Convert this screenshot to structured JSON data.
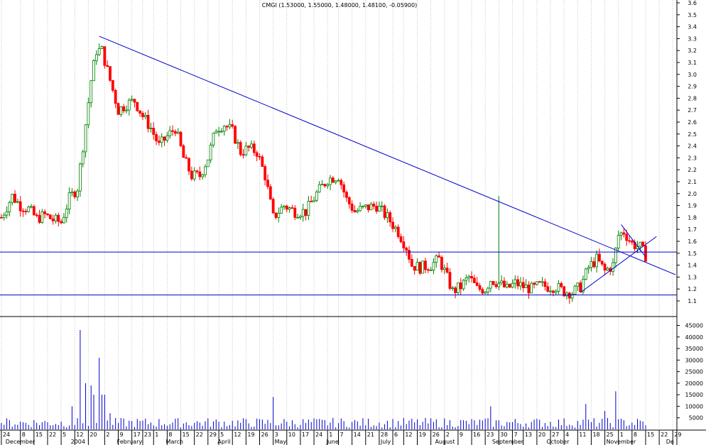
{
  "chart_data": {
    "type": "candlestick",
    "title": "CMGI (1.53000, 1.55000, 1.48000, 1.48100, -0.05900)",
    "colors": {
      "up": "#008000",
      "down": "#ff0000",
      "trend": "#0000cc",
      "volume": "#0000cc",
      "grid": "#c0c0c0",
      "axis": "#000000"
    },
    "price_axis": {
      "ylim": [
        1.1,
        3.6
      ],
      "ticks": [
        "3.6",
        "3.5",
        "3.4",
        "3.3",
        "3.2",
        "3.1",
        "3.0",
        "2.9",
        "2.8",
        "2.7",
        "2.6",
        "2.5",
        "2.4",
        "2.3",
        "2.2",
        "2.1",
        "2.0",
        "1.9",
        "1.8",
        "1.7",
        "1.6",
        "1.5",
        "1.4",
        "1.3",
        "1.2",
        "1.1"
      ],
      "tick_values": [
        3.6,
        3.5,
        3.4,
        3.3,
        3.2,
        3.1,
        3.0,
        2.9,
        2.8,
        2.7,
        2.6,
        2.5,
        2.4,
        2.3,
        2.2,
        2.1,
        2.0,
        1.9,
        1.8,
        1.7,
        1.6,
        1.5,
        1.4,
        1.3,
        1.2,
        1.1
      ]
    },
    "volume_axis": {
      "ylim": [
        0,
        47000
      ],
      "ticks": [
        "45000",
        "40000",
        "35000",
        "30000",
        "25000",
        "20000",
        "15000",
        "10000",
        "5000"
      ],
      "tick_values": [
        45000,
        40000,
        35000,
        30000,
        25000,
        20000,
        15000,
        10000,
        5000
      ]
    },
    "date_ticks": [
      "24",
      "8",
      "15",
      "22",
      "5",
      "12",
      "20",
      "2",
      "9",
      "17",
      "23",
      "1",
      "8",
      "15",
      "22",
      "29",
      "5",
      "12",
      "19",
      "26",
      "3",
      "10",
      "17",
      "24",
      "1",
      "7",
      "14",
      "21",
      "28",
      "6",
      "12",
      "19",
      "26",
      "2",
      "9",
      "16",
      "23",
      "30",
      "7",
      "13",
      "20",
      "27",
      "4",
      "11",
      "18",
      "25",
      "1",
      "8",
      "15",
      "22",
      "29"
    ],
    "date_tick_index": [
      0,
      7,
      12,
      17,
      22,
      27,
      32,
      38,
      43,
      48,
      52,
      56,
      61,
      66,
      71,
      76,
      80,
      85,
      90,
      95,
      100,
      105,
      110,
      115,
      120,
      124,
      129,
      134,
      139,
      144,
      148,
      153,
      158,
      163,
      168,
      173,
      178,
      183,
      188,
      192,
      197,
      202,
      207,
      212,
      217,
      222,
      227,
      232,
      237,
      242,
      247
    ],
    "month_labels": [
      "December",
      "2004",
      "February",
      "March",
      "April",
      "May",
      "June",
      "July",
      "August",
      "September",
      "October",
      "November",
      "De"
    ],
    "month_label_index": [
      1,
      25,
      42,
      60,
      79,
      100,
      119,
      139,
      159,
      180,
      200,
      222,
      244
    ],
    "hlines": [
      1.51,
      1.15
    ],
    "trendlines": [
      {
        "x1": 36,
        "y1": 3.32,
        "x2": 248,
        "y2": 1.32
      },
      {
        "x1": 213,
        "y1": 1.17,
        "x2": 241,
        "y2": 1.64
      },
      {
        "x1": 228,
        "y1": 1.74,
        "x2": 237,
        "y2": 1.47
      }
    ],
    "prices": [
      [
        0,
        1.8
      ],
      [
        4,
        1.98
      ],
      [
        7,
        1.9
      ],
      [
        10,
        1.87
      ],
      [
        13,
        1.79
      ],
      [
        16,
        1.82
      ],
      [
        19,
        1.78
      ],
      [
        22,
        1.76
      ],
      [
        25,
        1.96
      ],
      [
        28,
        2.05
      ],
      [
        30,
        2.4
      ],
      [
        33,
        2.95
      ],
      [
        35,
        3.2
      ],
      [
        37,
        3.2
      ],
      [
        40,
        2.95
      ],
      [
        43,
        2.7
      ],
      [
        46,
        2.75
      ],
      [
        49,
        2.78
      ],
      [
        52,
        2.65
      ],
      [
        55,
        2.55
      ],
      [
        58,
        2.4
      ],
      [
        61,
        2.48
      ],
      [
        64,
        2.55
      ],
      [
        67,
        2.3
      ],
      [
        70,
        2.15
      ],
      [
        73,
        2.15
      ],
      [
        76,
        2.3
      ],
      [
        79,
        2.55
      ],
      [
        82,
        2.58
      ],
      [
        85,
        2.52
      ],
      [
        88,
        2.35
      ],
      [
        91,
        2.38
      ],
      [
        94,
        2.35
      ],
      [
        97,
        2.15
      ],
      [
        100,
        1.8
      ],
      [
        104,
        1.9
      ],
      [
        108,
        1.85
      ],
      [
        112,
        1.85
      ],
      [
        116,
        2.0
      ],
      [
        120,
        2.12
      ],
      [
        124,
        2.15
      ],
      [
        127,
        1.95
      ],
      [
        130,
        1.85
      ],
      [
        134,
        1.88
      ],
      [
        138,
        1.9
      ],
      [
        142,
        1.8
      ],
      [
        146,
        1.68
      ],
      [
        149,
        1.55
      ],
      [
        151,
        1.4
      ],
      [
        154,
        1.38
      ],
      [
        158,
        1.4
      ],
      [
        161,
        1.45
      ],
      [
        163,
        1.35
      ],
      [
        166,
        1.18
      ],
      [
        169,
        1.22
      ],
      [
        172,
        1.3
      ],
      [
        175,
        1.2
      ],
      [
        178,
        1.2
      ],
      [
        180,
        1.28
      ],
      [
        183,
        1.25
      ],
      [
        186,
        1.2
      ],
      [
        189,
        1.25
      ],
      [
        192,
        1.22
      ],
      [
        195,
        1.2
      ],
      [
        198,
        1.23
      ],
      [
        201,
        1.22
      ],
      [
        204,
        1.22
      ],
      [
        207,
        1.18
      ],
      [
        210,
        1.17
      ],
      [
        213,
        1.22
      ],
      [
        216,
        1.38
      ],
      [
        219,
        1.45
      ],
      [
        222,
        1.35
      ],
      [
        225,
        1.4
      ],
      [
        227,
        1.65
      ],
      [
        229,
        1.68
      ],
      [
        232,
        1.58
      ],
      [
        235,
        1.55
      ],
      [
        237,
        1.48
      ]
    ],
    "volume_spikes": [
      [
        29,
        43000
      ],
      [
        31,
        20000
      ],
      [
        33,
        19000
      ],
      [
        34,
        15000
      ],
      [
        36,
        31000
      ],
      [
        37,
        15000
      ],
      [
        38,
        15000
      ],
      [
        26,
        10000
      ],
      [
        40,
        7000
      ],
      [
        100,
        14000
      ],
      [
        180,
        10000
      ],
      [
        215,
        11000
      ],
      [
        226,
        16500
      ],
      [
        222,
        8000
      ]
    ]
  }
}
